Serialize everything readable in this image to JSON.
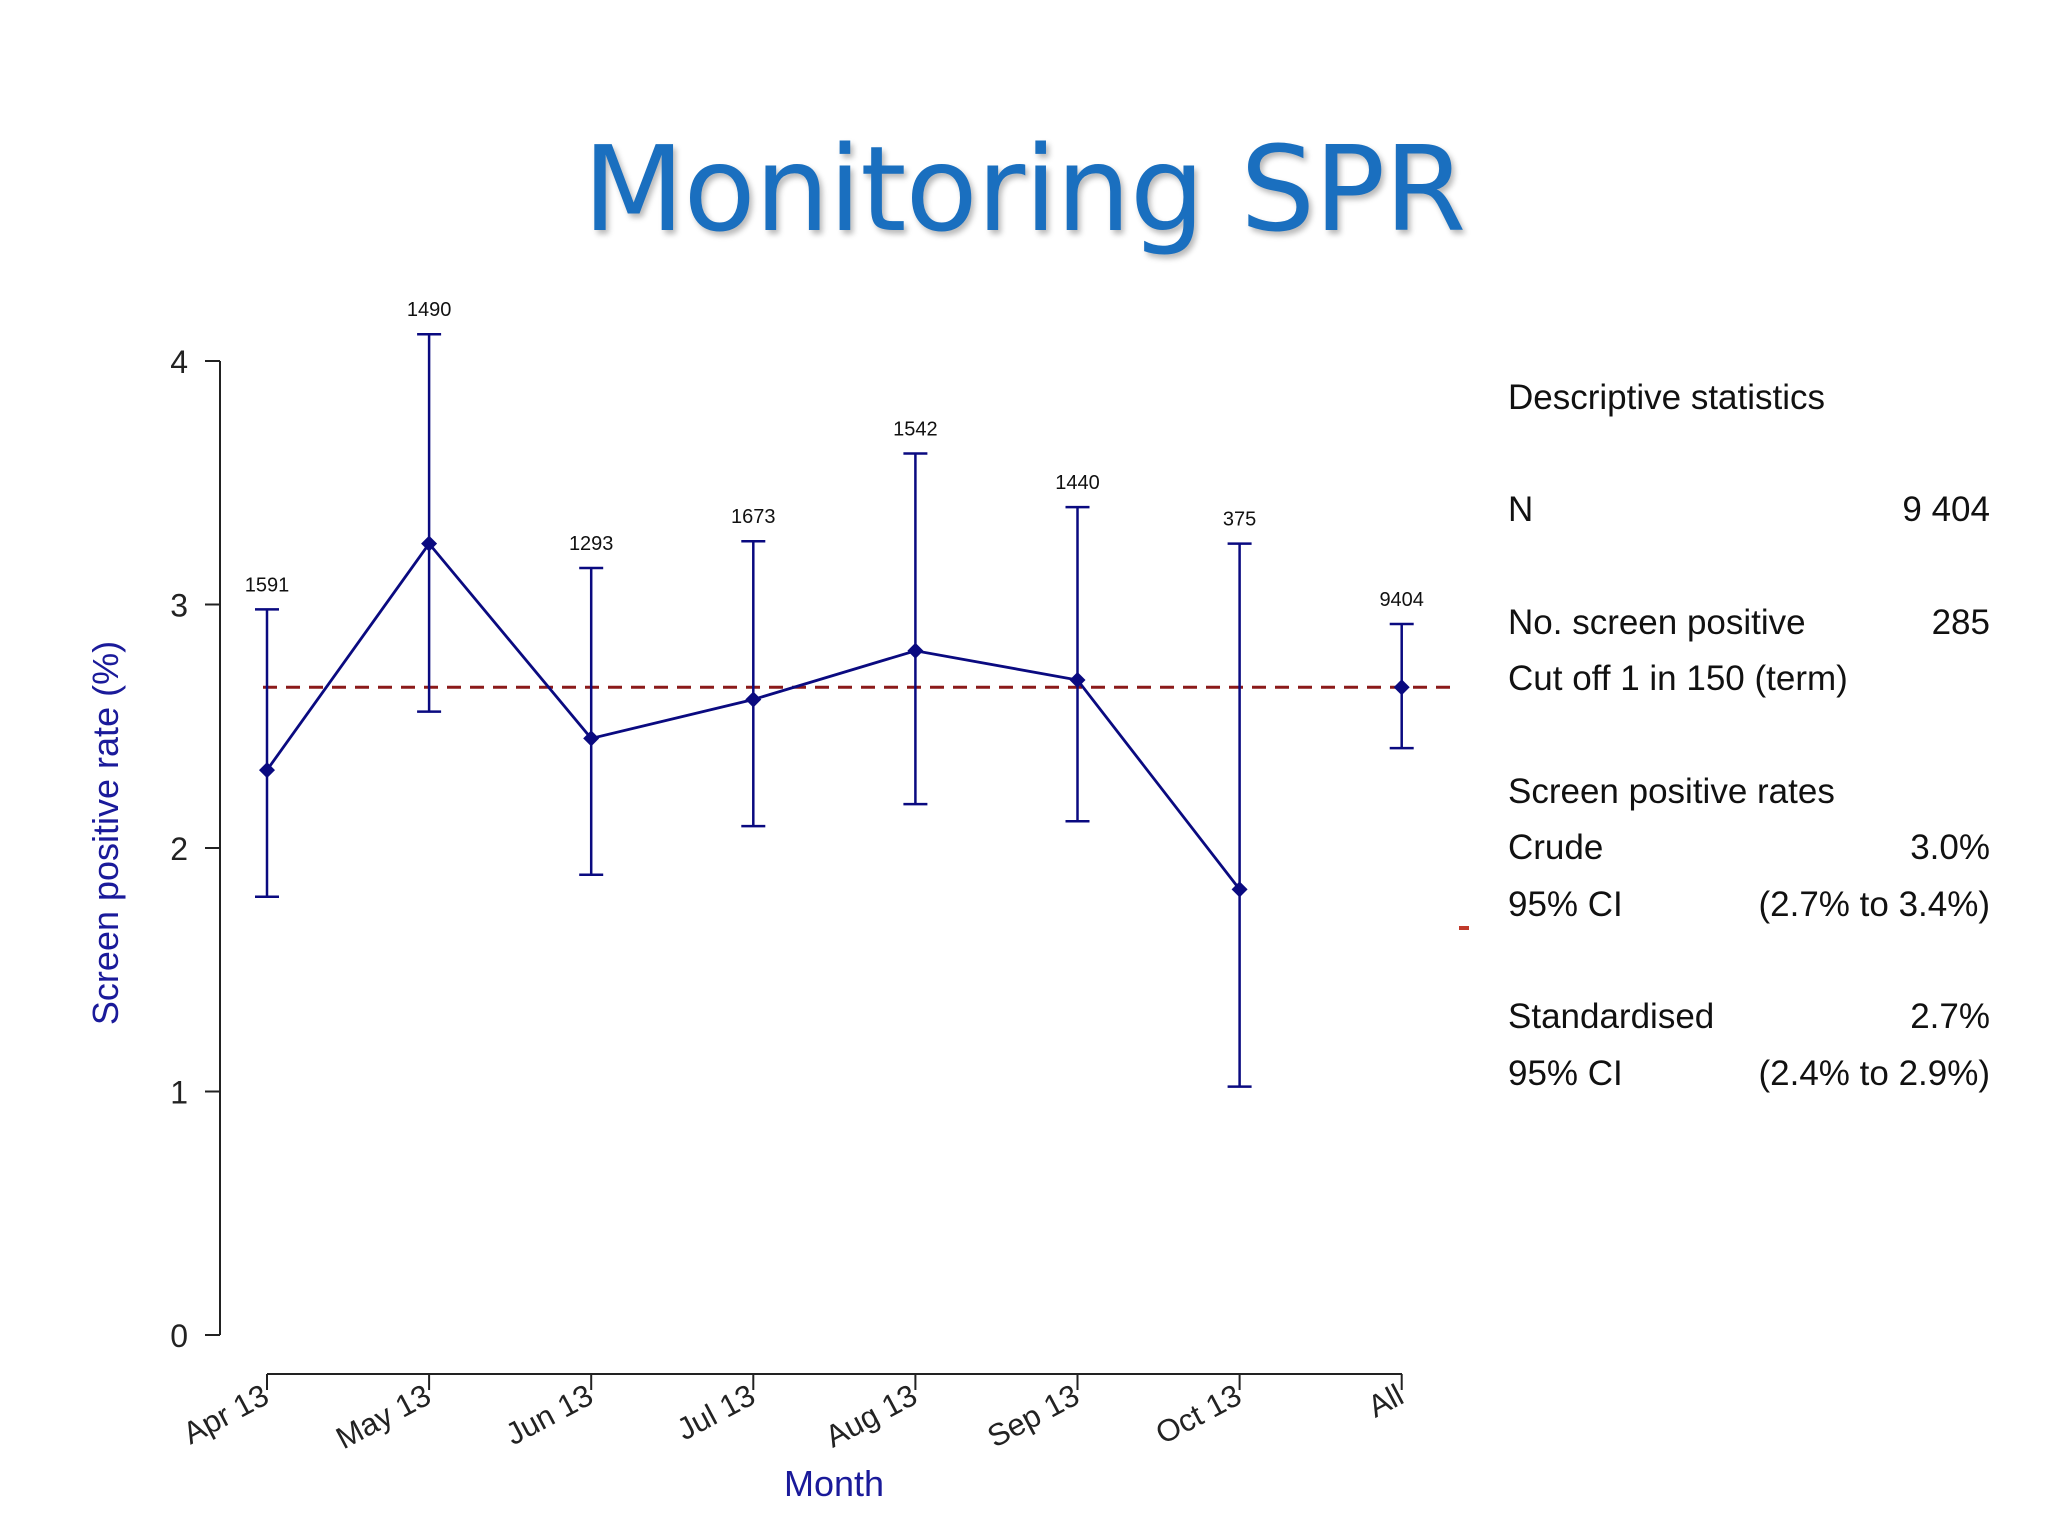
{
  "page": {
    "title": "Monitoring SPR"
  },
  "chart_data": {
    "type": "line",
    "title": "",
    "xlabel": "Month",
    "ylabel": "Screen positive rate (%)",
    "categories": [
      "Apr 13",
      "May 13",
      "Jun 13",
      "Jul 13",
      "Aug 13",
      "Sep 13",
      "Oct 13",
      "All"
    ],
    "values": [
      2.32,
      3.25,
      2.45,
      2.61,
      2.81,
      2.69,
      1.83,
      2.66
    ],
    "ci_lower": [
      1.8,
      2.56,
      1.89,
      2.09,
      2.18,
      2.11,
      1.02,
      2.41
    ],
    "ci_upper": [
      2.98,
      4.11,
      3.15,
      3.26,
      3.62,
      3.4,
      3.25,
      2.92
    ],
    "n_labels": [
      "1591",
      "1490",
      "1293",
      "1673",
      "1542",
      "1440",
      "375",
      "9404"
    ],
    "line_connects_first_n": 7,
    "reference_line": {
      "value": 2.66,
      "style": "dashed",
      "color": "#8b1a1a"
    },
    "ylim": [
      0,
      4
    ],
    "yticks": [
      "0",
      "1",
      "2",
      "3",
      "4"
    ],
    "grid": false,
    "series_color": "#0a0a80",
    "axis_label_color": "#1a1a9a"
  },
  "stats": {
    "heading": "Descriptive statistics",
    "rows": [
      {
        "label": "N",
        "value": "9 404"
      },
      {
        "label": "No. screen positive",
        "value": "285"
      },
      {
        "label": "Cut off 1 in 150 (term)",
        "value": ""
      },
      {
        "label": "Screen positive rates",
        "value": ""
      },
      {
        "label": "Crude",
        "value": "3.0%"
      },
      {
        "label": "95% CI",
        "value": "(2.7% to 3.4%)"
      },
      {
        "label": "Standardised",
        "value": "2.7%"
      },
      {
        "label": "95% CI",
        "value": "(2.4% to 2.9%)"
      }
    ]
  }
}
